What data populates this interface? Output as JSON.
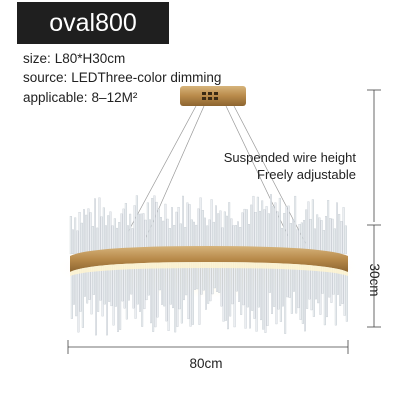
{
  "product": {
    "title": "oval800",
    "specs": [
      {
        "key": "size:",
        "value": "L80*H30cm"
      },
      {
        "key": "source:",
        "value": "LEDThree-color dimming"
      },
      {
        "key": "applicable:",
        "value": "8–12M²"
      }
    ],
    "wire_note_line1": "Suspended wire height",
    "wire_note_line2": "Freely adjustable",
    "width_label": "80cm",
    "height_label": "30cm"
  },
  "colors": {
    "title_bg": "#1f1f1f",
    "gold": "#b88a4a",
    "dimension_line": "#444444"
  }
}
